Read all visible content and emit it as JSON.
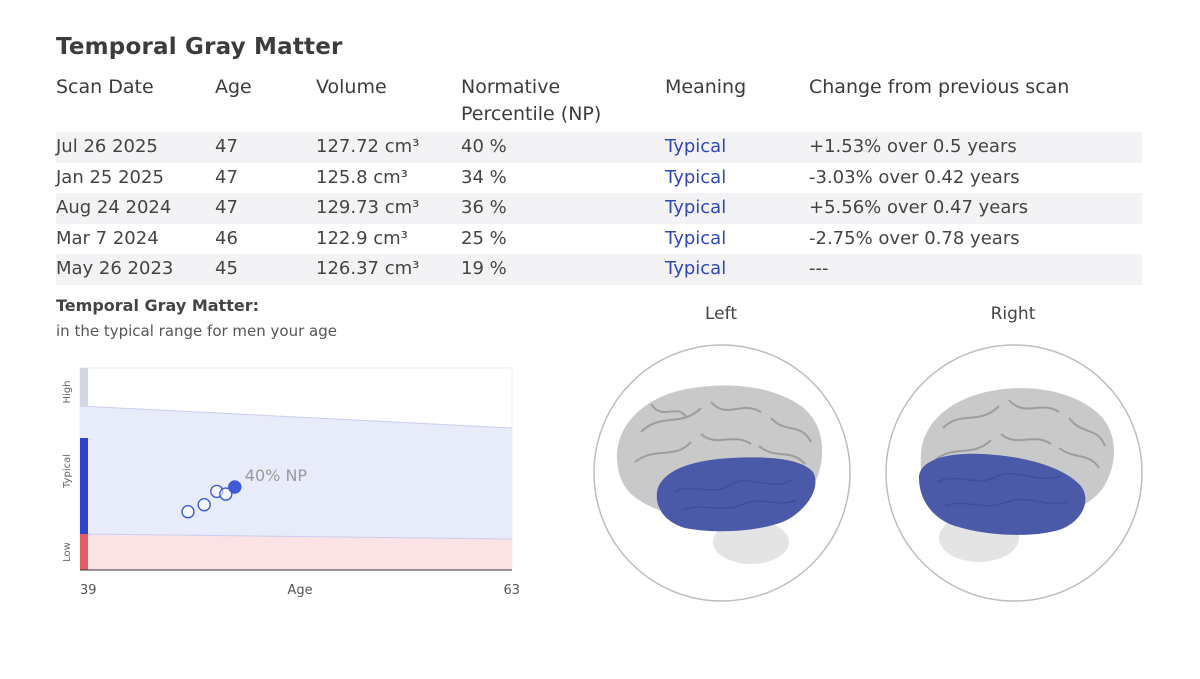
{
  "title": "Temporal Gray Matter",
  "table": {
    "headers": [
      "Scan Date",
      "Age",
      "Volume",
      "Normative Percentile (NP)",
      "Meaning",
      "Change from previous scan"
    ],
    "rows": [
      {
        "date": "Jul 26 2025",
        "age": "47",
        "volume": "127.72 cm³",
        "np": "40 %",
        "meaning": "Typical",
        "change": "+1.53% over 0.5 years"
      },
      {
        "date": "Jan 25 2025",
        "age": "47",
        "volume": "125.8 cm³",
        "np": "34 %",
        "meaning": "Typical",
        "change": "-3.03% over 0.42 years"
      },
      {
        "date": "Aug 24 2024",
        "age": "47",
        "volume": "129.73 cm³",
        "np": "36 %",
        "meaning": "Typical",
        "change": "+5.56% over 0.47 years"
      },
      {
        "date": "Mar 7 2024",
        "age": "46",
        "volume": "122.9 cm³",
        "np": "25 %",
        "meaning": "Typical",
        "change": "-2.75% over 0.78 years"
      },
      {
        "date": "May 26 2023",
        "age": "45",
        "volume": "126.37 cm³",
        "np": "19 %",
        "meaning": "Typical",
        "change": "---"
      }
    ]
  },
  "summary": {
    "heading": "Temporal Gray Matter:",
    "description": "in the typical range for men your age"
  },
  "chart_data": {
    "type": "scatter",
    "xlabel": "Age",
    "xlim": [
      39,
      63
    ],
    "x_tick_labels": [
      "39",
      "63"
    ],
    "band_labels": [
      "High",
      "Typical",
      "Low"
    ],
    "current_label": "40% NP",
    "points": [
      {
        "x": 45.0,
        "np": 19,
        "current": false
      },
      {
        "x": 45.9,
        "np": 25,
        "current": false
      },
      {
        "x": 46.6,
        "np": 36,
        "current": false
      },
      {
        "x": 47.1,
        "np": 34,
        "current": false
      },
      {
        "x": 47.6,
        "np": 40,
        "current": true
      }
    ],
    "colors": {
      "typical_band": "#e8ebfa",
      "low_band": "#fbe3e5",
      "high_bar": "#d5d6e3",
      "typical_bar": "#3042c7",
      "low_bar": "#df5c68",
      "point": "#3d5bd6"
    }
  },
  "brains": {
    "left_label": "Left",
    "right_label": "Right",
    "highlight_color": "#4a59a8"
  }
}
